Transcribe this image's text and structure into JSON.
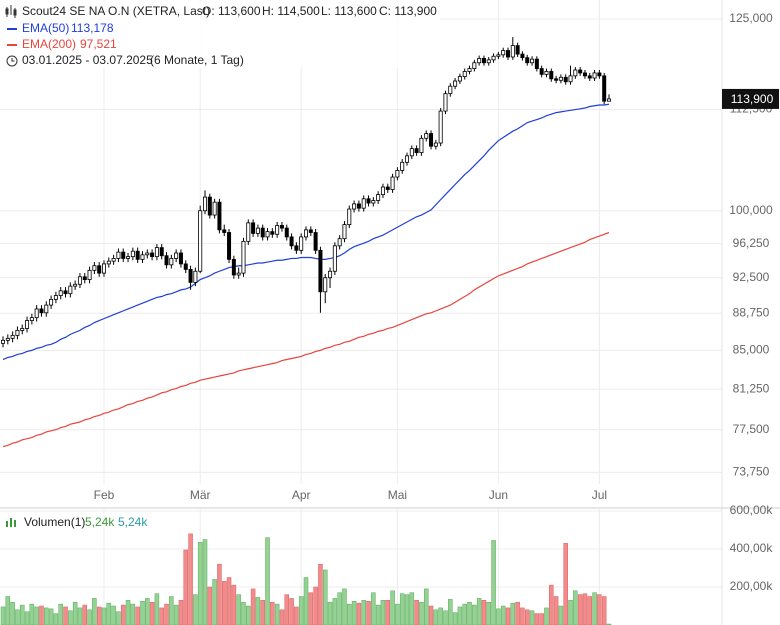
{
  "chart_data": {
    "type": "candlestick",
    "title": "Scout24 SE NA O.N (XETRA, Last)",
    "header_values": [
      "O: 113,600",
      "H: 114,500",
      "L: 113,600",
      "C: 113,900"
    ],
    "date_range": "03.01.2025 - 03.07.2025",
    "period": "(6 Monate, 1 Tag)",
    "last_label": "113,900",
    "log_scale": true,
    "grid": true,
    "up_color": "#ffffff",
    "down_color": "#000000",
    "categories": [
      null,
      null,
      null,
      null,
      null,
      null,
      null,
      null,
      null,
      null,
      null,
      null,
      null,
      null,
      null,
      null,
      null,
      null,
      null,
      null,
      null,
      "Feb",
      null,
      null,
      null,
      null,
      null,
      null,
      null,
      null,
      null,
      null,
      null,
      null,
      null,
      null,
      null,
      null,
      null,
      null,
      null,
      "Mär",
      null,
      null,
      null,
      null,
      null,
      null,
      null,
      null,
      null,
      null,
      null,
      null,
      null,
      null,
      null,
      null,
      null,
      null,
      null,
      null,
      "Apr",
      null,
      null,
      null,
      null,
      null,
      null,
      null,
      null,
      null,
      null,
      null,
      null,
      null,
      null,
      null,
      null,
      null,
      null,
      null,
      "Mai",
      null,
      null,
      null,
      null,
      null,
      null,
      null,
      null,
      null,
      null,
      null,
      null,
      null,
      null,
      null,
      null,
      null,
      null,
      null,
      null,
      "Jun",
      null,
      null,
      null,
      null,
      null,
      null,
      null,
      null,
      null,
      null,
      null,
      null,
      null,
      null,
      null,
      null,
      null,
      null,
      null,
      null,
      "Jul",
      null,
      null
    ],
    "ohlc": [
      [
        85.7,
        86.4,
        85.3,
        86.0
      ],
      [
        86.0,
        86.6,
        85.6,
        86.2
      ],
      [
        86.2,
        86.9,
        85.8,
        86.5
      ],
      [
        86.5,
        87.4,
        86.1,
        87.0
      ],
      [
        87.0,
        87.6,
        86.6,
        87.2
      ],
      [
        87.2,
        88.4,
        86.8,
        88.0
      ],
      [
        88.0,
        88.7,
        87.6,
        88.3
      ],
      [
        88.3,
        89.6,
        87.9,
        89.2
      ],
      [
        89.2,
        89.6,
        88.4,
        88.8
      ],
      [
        88.8,
        90.0,
        88.4,
        89.6
      ],
      [
        89.6,
        90.6,
        89.2,
        90.2
      ],
      [
        90.2,
        91.0,
        89.8,
        90.6
      ],
      [
        90.6,
        91.5,
        90.2,
        91.1
      ],
      [
        91.1,
        91.5,
        90.4,
        90.8
      ],
      [
        90.8,
        92.0,
        90.4,
        91.6
      ],
      [
        91.6,
        92.2,
        91.2,
        91.8
      ],
      [
        91.8,
        93.0,
        91.4,
        92.6
      ],
      [
        92.6,
        93.0,
        91.9,
        92.3
      ],
      [
        92.3,
        93.7,
        91.9,
        93.3
      ],
      [
        93.3,
        94.2,
        92.9,
        93.8
      ],
      [
        93.8,
        94.2,
        92.6,
        93.0
      ],
      [
        93.0,
        94.4,
        92.6,
        94.0
      ],
      [
        94.0,
        94.7,
        93.6,
        94.3
      ],
      [
        94.3,
        95.0,
        93.9,
        94.6
      ],
      [
        94.6,
        95.7,
        94.2,
        95.3
      ],
      [
        95.3,
        95.7,
        94.2,
        94.6
      ],
      [
        94.6,
        95.2,
        94.2,
        94.8
      ],
      [
        94.8,
        95.8,
        94.4,
        95.4
      ],
      [
        95.4,
        95.8,
        94.1,
        94.5
      ],
      [
        94.5,
        95.4,
        94.1,
        95.0
      ],
      [
        95.0,
        95.6,
        94.6,
        95.2
      ],
      [
        95.2,
        95.6,
        94.4,
        94.8
      ],
      [
        94.8,
        96.2,
        94.4,
        95.8
      ],
      [
        95.8,
        96.2,
        94.5,
        94.9
      ],
      [
        94.9,
        95.3,
        93.5,
        93.9
      ],
      [
        93.9,
        95.0,
        93.5,
        94.6
      ],
      [
        94.6,
        95.6,
        94.2,
        95.2
      ],
      [
        95.2,
        95.6,
        93.6,
        94.0
      ],
      [
        94.0,
        94.4,
        93.0,
        93.4
      ],
      [
        93.4,
        93.8,
        91.2,
        92.0
      ],
      [
        92.0,
        93.6,
        91.6,
        93.2
      ],
      [
        93.2,
        100.6,
        93.0,
        100.0
      ],
      [
        100.0,
        102.4,
        99.6,
        101.6
      ],
      [
        101.6,
        102.0,
        99.1,
        99.5
      ],
      [
        99.5,
        101.4,
        99.1,
        101.0
      ],
      [
        101.0,
        101.4,
        97.4,
        97.8
      ],
      [
        97.8,
        98.4,
        97.1,
        97.5
      ],
      [
        97.5,
        97.9,
        94.1,
        94.5
      ],
      [
        94.5,
        94.9,
        92.4,
        92.8
      ],
      [
        92.8,
        93.6,
        92.4,
        93.0
      ],
      [
        93.0,
        96.9,
        92.6,
        96.5
      ],
      [
        96.5,
        99.0,
        96.1,
        98.6
      ],
      [
        98.6,
        99.0,
        97.0,
        97.4
      ],
      [
        97.4,
        98.4,
        97.0,
        98.0
      ],
      [
        98.0,
        98.4,
        96.6,
        97.0
      ],
      [
        97.0,
        98.0,
        96.6,
        97.6
      ],
      [
        97.6,
        98.0,
        96.9,
        97.3
      ],
      [
        97.3,
        98.7,
        96.9,
        98.3
      ],
      [
        98.3,
        98.7,
        97.6,
        98.0
      ],
      [
        98.0,
        98.4,
        96.6,
        97.0
      ],
      [
        97.0,
        97.4,
        95.6,
        96.0
      ],
      [
        96.0,
        96.4,
        95.1,
        95.5
      ],
      [
        95.5,
        97.4,
        95.1,
        97.0
      ],
      [
        97.0,
        98.2,
        96.6,
        97.8
      ],
      [
        97.8,
        98.2,
        97.1,
        97.5
      ],
      [
        97.5,
        97.9,
        95.1,
        95.5
      ],
      [
        95.5,
        95.9,
        88.8,
        91.0
      ],
      [
        91.0,
        92.9,
        89.8,
        92.5
      ],
      [
        92.5,
        93.6,
        91.4,
        93.2
      ],
      [
        93.2,
        96.4,
        92.8,
        96.0
      ],
      [
        96.0,
        97.2,
        95.6,
        96.8
      ],
      [
        96.8,
        98.8,
        96.4,
        98.4
      ],
      [
        98.4,
        100.6,
        98.0,
        100.2
      ],
      [
        100.2,
        101.2,
        99.8,
        100.8
      ],
      [
        100.8,
        101.2,
        99.9,
        100.3
      ],
      [
        100.3,
        101.8,
        99.9,
        101.4
      ],
      [
        101.4,
        101.8,
        100.5,
        100.9
      ],
      [
        100.9,
        101.6,
        100.5,
        101.2
      ],
      [
        101.2,
        102.3,
        100.8,
        101.9
      ],
      [
        101.9,
        103.2,
        101.5,
        102.8
      ],
      [
        102.8,
        103.2,
        102.1,
        102.5
      ],
      [
        102.5,
        104.4,
        102.1,
        104.0
      ],
      [
        104.0,
        105.2,
        103.6,
        104.8
      ],
      [
        104.8,
        106.2,
        104.4,
        105.8
      ],
      [
        105.8,
        107.0,
        105.4,
        106.6
      ],
      [
        106.6,
        107.9,
        106.2,
        107.5
      ],
      [
        107.5,
        107.9,
        106.6,
        107.0
      ],
      [
        107.0,
        109.2,
        106.6,
        108.8
      ],
      [
        108.8,
        109.8,
        108.4,
        109.4
      ],
      [
        109.4,
        109.8,
        107.4,
        107.8
      ],
      [
        107.8,
        108.6,
        107.4,
        108.2
      ],
      [
        108.2,
        112.7,
        107.8,
        112.3
      ],
      [
        112.3,
        115.0,
        111.9,
        114.6
      ],
      [
        114.6,
        116.0,
        114.2,
        115.6
      ],
      [
        115.6,
        116.7,
        115.2,
        116.3
      ],
      [
        116.3,
        117.3,
        115.9,
        116.9
      ],
      [
        116.9,
        118.0,
        116.5,
        117.6
      ],
      [
        117.6,
        118.4,
        117.2,
        118.0
      ],
      [
        118.0,
        119.2,
        117.6,
        118.8
      ],
      [
        118.8,
        119.8,
        118.4,
        119.4
      ],
      [
        119.4,
        119.8,
        118.4,
        118.8
      ],
      [
        118.8,
        119.6,
        118.4,
        119.2
      ],
      [
        119.2,
        120.1,
        118.8,
        119.7
      ],
      [
        119.7,
        120.3,
        119.3,
        119.9
      ],
      [
        119.9,
        120.9,
        119.5,
        120.5
      ],
      [
        120.5,
        120.9,
        119.2,
        119.6
      ],
      [
        119.6,
        122.4,
        119.2,
        121.2
      ],
      [
        121.2,
        121.6,
        119.6,
        120.0
      ],
      [
        120.0,
        120.4,
        119.1,
        119.5
      ],
      [
        119.5,
        119.9,
        118.4,
        118.8
      ],
      [
        118.8,
        119.7,
        118.4,
        119.3
      ],
      [
        119.3,
        119.7,
        117.6,
        118.0
      ],
      [
        118.0,
        118.4,
        116.8,
        117.2
      ],
      [
        117.2,
        118.0,
        116.8,
        117.6
      ],
      [
        117.6,
        118.0,
        116.2,
        116.6
      ],
      [
        116.6,
        117.0,
        116.0,
        116.4
      ],
      [
        116.4,
        117.2,
        116.0,
        116.8
      ],
      [
        116.8,
        117.2,
        115.8,
        116.2
      ],
      [
        116.2,
        118.4,
        115.8,
        117.0
      ],
      [
        117.0,
        118.2,
        116.6,
        117.8
      ],
      [
        117.8,
        118.2,
        117.0,
        117.4
      ],
      [
        117.4,
        117.8,
        116.6,
        117.0
      ],
      [
        117.0,
        117.4,
        116.3,
        116.7
      ],
      [
        116.7,
        117.8,
        116.3,
        117.4
      ],
      [
        117.4,
        117.8,
        116.6,
        117.0
      ],
      [
        117.0,
        117.4,
        113.2,
        113.6
      ],
      [
        113.6,
        114.5,
        113.6,
        113.9
      ]
    ],
    "series": [
      {
        "name": "EMA(50)",
        "color": "#1f3fd6",
        "legend_value": "113,178",
        "values": [
          84.1,
          84.3,
          84.4,
          84.6,
          84.7,
          84.9,
          85.0,
          85.2,
          85.3,
          85.5,
          85.6,
          85.8,
          86.1,
          86.3,
          86.6,
          86.8,
          87.0,
          87.3,
          87.5,
          87.8,
          88.0,
          88.2,
          88.4,
          88.6,
          88.8,
          89.0,
          89.2,
          89.4,
          89.6,
          89.8,
          90.0,
          90.2,
          90.4,
          90.5,
          90.7,
          90.8,
          91.0,
          91.2,
          91.3,
          91.5,
          91.9,
          92.3,
          92.5,
          92.7,
          93.0,
          93.2,
          93.4,
          93.6,
          93.7,
          93.8,
          93.8,
          93.9,
          94.0,
          94.1,
          94.1,
          94.2,
          94.3,
          94.4,
          94.4,
          94.5,
          94.6,
          94.6,
          94.7,
          94.7,
          94.7,
          94.6,
          94.5,
          94.5,
          94.6,
          94.7,
          94.9,
          95.2,
          95.6,
          95.9,
          96.1,
          96.3,
          96.5,
          96.8,
          97.0,
          97.2,
          97.5,
          97.8,
          98.1,
          98.4,
          98.7,
          99.0,
          99.3,
          99.5,
          99.8,
          100.1,
          100.7,
          101.3,
          101.9,
          102.5,
          103.1,
          103.7,
          104.3,
          104.8,
          105.4,
          106.0,
          106.6,
          107.3,
          107.9,
          108.5,
          108.9,
          109.3,
          109.7,
          110.0,
          110.4,
          110.8,
          111.0,
          111.2,
          111.4,
          111.7,
          111.9,
          112.1,
          112.2,
          112.3,
          112.4,
          112.5,
          112.6,
          112.7,
          112.9,
          113.0,
          113.1,
          113.1,
          113.2
        ]
      },
      {
        "name": "EMA(200)",
        "color": "#e8453c",
        "legend_value": "97,521",
        "values": [
          76.0,
          76.1,
          76.3,
          76.4,
          76.6,
          76.7,
          76.8,
          77.0,
          77.1,
          77.3,
          77.4,
          77.5,
          77.7,
          77.8,
          78.0,
          78.1,
          78.2,
          78.4,
          78.5,
          78.7,
          78.8,
          79.0,
          79.1,
          79.3,
          79.4,
          79.6,
          79.8,
          79.9,
          80.1,
          80.2,
          80.4,
          80.5,
          80.7,
          80.9,
          81.0,
          81.2,
          81.3,
          81.5,
          81.6,
          81.8,
          81.9,
          82.1,
          82.2,
          82.3,
          82.4,
          82.5,
          82.6,
          82.7,
          82.8,
          83.0,
          83.1,
          83.2,
          83.3,
          83.4,
          83.5,
          83.6,
          83.7,
          83.8,
          84.0,
          84.1,
          84.2,
          84.3,
          84.4,
          84.6,
          84.7,
          84.9,
          85.0,
          85.2,
          85.3,
          85.5,
          85.6,
          85.8,
          85.9,
          86.1,
          86.3,
          86.4,
          86.6,
          86.7,
          86.9,
          87.0,
          87.2,
          87.3,
          87.5,
          87.7,
          87.9,
          88.1,
          88.3,
          88.5,
          88.7,
          88.8,
          89.0,
          89.2,
          89.4,
          89.6,
          89.9,
          90.2,
          90.5,
          90.8,
          91.2,
          91.5,
          91.8,
          92.1,
          92.4,
          92.7,
          92.9,
          93.1,
          93.3,
          93.5,
          93.7,
          94.0,
          94.2,
          94.4,
          94.6,
          94.8,
          95.0,
          95.2,
          95.4,
          95.6,
          95.8,
          96.0,
          96.2,
          96.4,
          96.7,
          96.9,
          97.1,
          97.3,
          97.5
        ]
      }
    ],
    "ylim": [
      71.0,
      127.8
    ],
    "yticks": [
      {
        "value": 73.75,
        "label": "73,750"
      },
      {
        "value": 77.5,
        "label": "77,500"
      },
      {
        "value": 81.25,
        "label": "81,250"
      },
      {
        "value": 85,
        "label": "85,000"
      },
      {
        "value": 88.75,
        "label": "88,750"
      },
      {
        "value": 92.5,
        "label": "92,500"
      },
      {
        "value": 96.25,
        "label": "96,250"
      },
      {
        "value": 100,
        "label": "100,000"
      },
      {
        "value": 112.5,
        "label": "112,500"
      },
      {
        "value": 125,
        "label": "125,000"
      }
    ],
    "volume": {
      "name": "Volumen(1)",
      "header_values": [
        "5,24k",
        "5,24k"
      ],
      "up_color": "#93d293",
      "down_color": "#f28b8b",
      "ylim": [
        0,
        616000
      ],
      "yticks": [
        {
          "value": 200000,
          "label": "200,00k"
        },
        {
          "value": 400000,
          "label": "400,00k"
        },
        {
          "value": 600000,
          "label": "600,00k"
        }
      ],
      "values": [
        95000,
        150000,
        120000,
        80000,
        105000,
        70000,
        110000,
        95000,
        100000,
        90000,
        85000,
        60000,
        110000,
        95000,
        75000,
        120000,
        90000,
        105000,
        80000,
        140000,
        95000,
        90000,
        115000,
        100000,
        70000,
        105000,
        130000,
        110000,
        95000,
        125000,
        140000,
        120000,
        165000,
        90000,
        110000,
        150000,
        105000,
        130000,
        395000,
        480000,
        160000,
        435000,
        450000,
        200000,
        240000,
        320000,
        230000,
        250000,
        210000,
        160000,
        120000,
        100000,
        190000,
        145000,
        130000,
        460000,
        120000,
        110000,
        80000,
        160000,
        140000,
        95000,
        150000,
        250000,
        170000,
        200000,
        320000,
        290000,
        120000,
        140000,
        170000,
        190000,
        110000,
        125000,
        115000,
        130000,
        125000,
        170000,
        105000,
        130000,
        130000,
        180000,
        110000,
        165000,
        160000,
        170000,
        130000,
        120000,
        190000,
        100000,
        80000,
        90000,
        75000,
        135000,
        65000,
        95000,
        110000,
        120000,
        105000,
        140000,
        130000,
        120000,
        445000,
        85000,
        100000,
        90000,
        115000,
        120000,
        90000,
        80000,
        75000,
        60000,
        60000,
        90000,
        210000,
        150000,
        100000,
        430000,
        130000,
        180000,
        160000,
        165000,
        150000,
        170000,
        160000,
        150000,
        5240
      ]
    }
  }
}
